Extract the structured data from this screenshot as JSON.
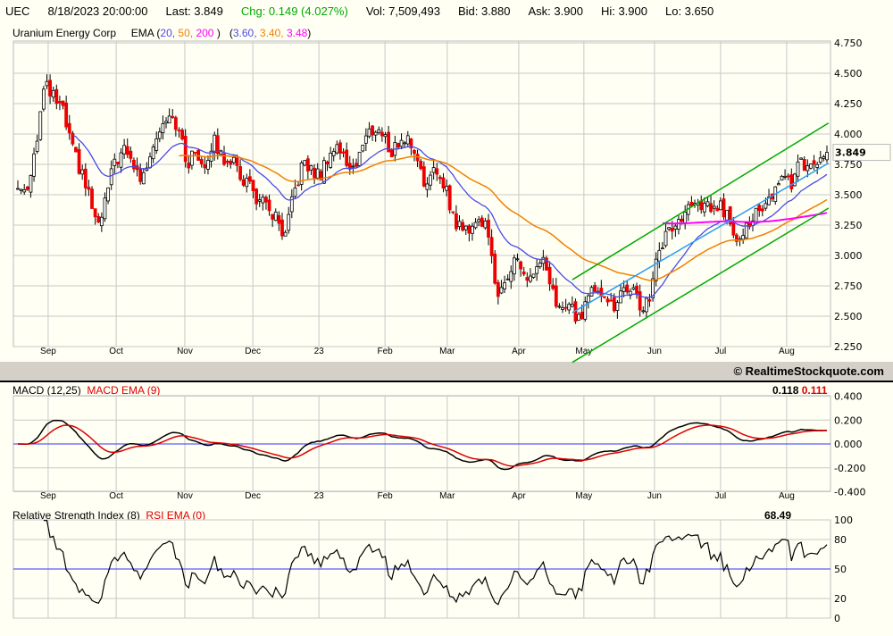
{
  "header": {
    "symbol": "UEC",
    "datetime": "8/18/2023 20:00:00",
    "last": "Last: 3.849",
    "chg": "Chg: 0.149 (4.027%)",
    "vol": "Vol: 7,509,493",
    "bid": "Bid: 3.880",
    "ask": "Ask: 3.900",
    "hi": "Hi: 3.900",
    "lo": "Lo: 3.650"
  },
  "colors": {
    "up": "#ffffff",
    "down": "#ee0000",
    "ema20": "#4a4ae8",
    "ema50": "#f08000",
    "ema200": "#ff00ff",
    "channel": "#00aa00",
    "midline": "#2a9df4",
    "macd": "#000000",
    "signal": "#dd0000",
    "zero": "#3333ff",
    "chg": "#00aa00"
  },
  "price_legend": {
    "name": "Uranium Energy Corp",
    "ema_label": "EMA (",
    "p20": "20,",
    "p50": "50,",
    "p200": "200",
    "close1": ")",
    "open2": "(",
    "v20": "3.60,",
    "v50": "3.40,",
    "v200": "3.48",
    "close2": ")"
  },
  "copyright": "© RealtimeStockquote.com",
  "macd_legend": {
    "label": "MACD (12,25)",
    "ema_label": "MACD EMA (9)",
    "value": "0.118",
    "signal_value": "0.111"
  },
  "rsi_legend": {
    "label": "Relative Strength Index (8)",
    "ema_label": "RSI EMA (0)",
    "value": "68.49"
  },
  "chart_data": [
    {
      "type": "candlestick",
      "title": "UEC — Uranium Energy Corp",
      "last_price_tag": "3.849",
      "candle_count": 252,
      "close_keypoints": [
        3.55,
        3.55,
        3.9,
        4.4,
        4.3,
        4.2,
        3.9,
        3.7,
        3.5,
        3.2,
        3.5,
        3.8,
        3.85,
        3.75,
        3.6,
        3.9,
        4.05,
        4.2,
        4.05,
        3.75,
        3.85,
        3.75,
        3.95,
        3.8,
        3.8,
        3.65,
        3.6,
        3.45,
        3.4,
        3.3,
        3.1,
        3.5,
        3.75,
        3.7,
        3.65,
        3.85,
        3.9,
        3.75,
        3.75,
        3.95,
        4.05,
        4.0,
        3.85,
        3.95,
        3.95,
        3.8,
        3.55,
        3.7,
        3.6,
        3.3,
        3.2,
        3.25,
        3.3,
        3.2,
        2.6,
        2.85,
        3.0,
        2.8,
        2.85,
        2.95,
        2.7,
        2.55,
        2.6,
        2.45,
        2.65,
        2.75,
        2.7,
        2.55,
        2.7,
        2.75,
        2.55,
        2.65,
        3.0,
        3.2,
        3.25,
        3.35,
        3.4,
        3.4,
        3.4,
        3.4,
        3.3,
        3.15,
        3.25,
        3.35,
        3.35,
        3.55,
        3.65,
        3.6,
        3.75,
        3.7,
        3.72,
        3.849
      ],
      "ema_periods": [
        20,
        50,
        200
      ],
      "ylim": [
        2.25,
        4.75
      ],
      "yticks": [
        "4.750",
        "4.500",
        "4.250",
        "4.000",
        "3.750",
        "3.500",
        "3.250",
        "3.000",
        "2.750",
        "2.500",
        "2.250"
      ],
      "months": [
        {
          "label": "Sep",
          "idx": 9.4
        },
        {
          "label": "Oct",
          "idx": 30.5
        },
        {
          "label": "Nov",
          "idx": 51.8
        },
        {
          "label": "Dec",
          "idx": 72.9
        },
        {
          "label": "23",
          "idx": 93.4
        },
        {
          "label": "Feb",
          "idx": 113.9
        },
        {
          "label": "Mar",
          "idx": 133.2
        },
        {
          "label": "Apr",
          "idx": 155.4
        },
        {
          "label": "May",
          "idx": 175.6
        },
        {
          "label": "Jun",
          "idx": 197.5
        },
        {
          "label": "Jul",
          "idx": 218
        },
        {
          "label": "Aug",
          "idx": 238.5
        }
      ],
      "trendlines": [
        {
          "name": "channel-upper",
          "from": [
            172,
            2.8
          ],
          "to": [
            251.5,
            4.09
          ],
          "color": "channel"
        },
        {
          "name": "channel-lower",
          "from": [
            172,
            2.12
          ],
          "to": [
            251.5,
            3.39
          ],
          "color": "channel"
        },
        {
          "name": "channel-mid",
          "from": [
            172,
            2.53
          ],
          "to": [
            251.5,
            3.76
          ],
          "color": "midline"
        }
      ]
    },
    {
      "type": "line",
      "title": "MACD (12,25) / MACD EMA (9)",
      "ylim": [
        -0.4,
        0.4
      ],
      "yticks": [
        "0.400",
        "0.200",
        "0.000",
        "-0.200",
        "-0.400"
      ],
      "fast": 12,
      "slow": 25,
      "signal": 9
    },
    {
      "type": "line",
      "title": "Relative Strength Index (8)",
      "ylim": [
        0,
        100
      ],
      "yticks": [
        "100",
        "80",
        "50",
        "20",
        "0"
      ],
      "period": 8
    }
  ]
}
